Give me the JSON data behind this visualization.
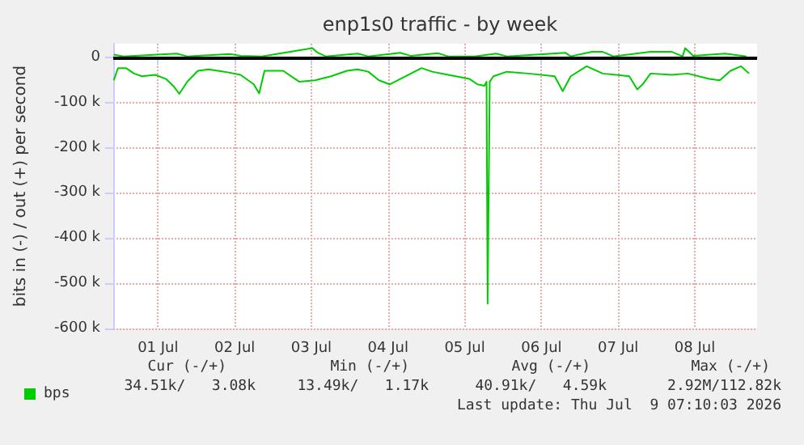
{
  "chart_data": {
    "type": "line",
    "title": "enp1s0 traffic - by week",
    "ylabel": "bits in (-) / out (+) per second",
    "xlim": [
      "2026-06-30T10:00",
      "2026-07-08T19:30"
    ],
    "xticks": [
      {
        "value": "2026-07-01",
        "label": "01 Jul"
      },
      {
        "value": "2026-07-02",
        "label": "02 Jul"
      },
      {
        "value": "2026-07-03",
        "label": "03 Jul"
      },
      {
        "value": "2026-07-04",
        "label": "04 Jul"
      },
      {
        "value": "2026-07-05",
        "label": "05 Jul"
      },
      {
        "value": "2026-07-06",
        "label": "06 Jul"
      },
      {
        "value": "2026-07-07",
        "label": "07 Jul"
      },
      {
        "value": "2026-07-08",
        "label": "08 Jul"
      }
    ],
    "ylim": [
      -600,
      30
    ],
    "yticks": [
      {
        "value": -600,
        "label": "-600 k"
      },
      {
        "value": -500,
        "label": "-500 k"
      },
      {
        "value": -400,
        "label": "-400 k"
      },
      {
        "value": -300,
        "label": "-300 k"
      },
      {
        "value": -200,
        "label": "-200 k"
      },
      {
        "value": -100,
        "label": "-100 k"
      },
      0
    ],
    "grid": true,
    "legend": "bottom left",
    "marker": "none",
    "line_style": "solid",
    "ref_lines": [
      {
        "axis": "y",
        "value": 0,
        "color": "#000000"
      }
    ],
    "series": [
      {
        "name": "bps",
        "color": "#00cc00",
        "x": [
          "2026-06-30T10:10",
          "2026-06-30T11:30",
          "2026-06-30T14:00",
          "2026-06-30T16:30",
          "2026-06-30T19:00",
          "2026-06-30T23:10",
          "2026-07-01T02:30",
          "2026-07-01T05:00",
          "2026-07-01T06:40",
          "2026-07-01T09:10",
          "2026-07-01T12:30",
          "2026-07-01T15:50",
          "2026-07-01T20:50",
          "2026-07-02T01:50",
          "2026-07-02T06:00",
          "2026-07-02T07:40",
          "2026-07-02T09:20",
          "2026-07-02T15:10",
          "2026-07-02T20:10",
          "2026-07-03T01:10",
          "2026-07-03T06:10",
          "2026-07-03T11:10",
          "2026-07-03T14:30",
          "2026-07-03T17:50",
          "2026-07-03T21:10",
          "2026-07-04T00:30",
          "2026-07-04T03:50",
          "2026-07-04T10:30",
          "2026-07-04T13:50",
          "2026-07-04T18:50",
          "2026-07-05T01:30",
          "2026-07-05T04:00",
          "2026-07-05T06:10",
          "2026-07-05T06:50",
          "2026-07-05T07:10",
          "2026-07-05T07:50",
          "2026-07-05T09:00",
          "2026-07-05T13:10",
          "2026-07-05T19:50",
          "2026-07-06T04:10",
          "2026-07-06T06:40",
          "2026-07-06T09:10",
          "2026-07-06T14:10",
          "2026-07-06T19:10",
          "2026-07-07T03:30",
          "2026-07-07T06:00",
          "2026-07-07T07:40",
          "2026-07-07T10:10",
          "2026-07-07T16:50",
          "2026-07-07T21:50",
          "2026-07-08T04:30",
          "2026-07-08T07:50",
          "2026-07-08T11:10",
          "2026-07-08T14:30",
          "2026-07-08T17:00"
        ],
        "values": [
          -51,
          -24,
          -24,
          -36,
          -42,
          -39,
          -48,
          -65,
          -81,
          -54,
          -30,
          -27,
          -32,
          -39,
          -60,
          -80,
          -30,
          -30,
          -54,
          -51,
          -42,
          -30,
          -27,
          -32,
          -51,
          -60,
          -48,
          -24,
          -32,
          -39,
          -48,
          -60,
          -63,
          -54,
          -545,
          -54,
          -42,
          -32,
          -36,
          -42,
          -75,
          -42,
          -20,
          -36,
          -42,
          -71,
          -60,
          -36,
          -39,
          -36,
          -48,
          -51,
          -30,
          -20,
          -36
        ]
      },
      {
        "color": "#00cc00",
        "x": [
          "2026-06-30T10:10",
          "2026-06-30T13:10",
          "2026-07-01T05:50",
          "2026-07-01T09:10",
          "2026-07-01T22:30",
          "2026-07-02T01:50",
          "2026-07-02T08:30",
          "2026-07-03T00:20",
          "2026-07-03T02:00",
          "2026-07-03T04:30",
          "2026-07-03T14:30",
          "2026-07-03T17:50",
          "2026-07-04T03:50",
          "2026-07-04T07:10",
          "2026-07-04T15:30",
          "2026-07-04T18:50",
          "2026-07-05T03:10",
          "2026-07-05T09:50",
          "2026-07-05T13:10",
          "2026-07-06T07:30",
          "2026-07-06T09:10",
          "2026-07-06T15:50",
          "2026-07-06T19:10",
          "2026-07-06T22:30",
          "2026-07-07T10:10",
          "2026-07-07T16:50",
          "2026-07-07T20:10",
          "2026-07-07T21:00",
          "2026-07-07T23:30",
          "2026-07-08T09:30",
          "2026-07-08T16:10"
        ],
        "values": [
          6,
          2,
          8,
          2,
          7,
          3,
          2,
          20,
          10,
          2,
          8,
          2,
          10,
          3,
          9,
          2,
          2,
          8,
          2,
          10,
          2,
          12,
          12,
          2,
          12,
          12,
          2,
          20,
          3,
          8,
          2
        ]
      }
    ],
    "annotations": [
      "Cur (-/+)",
      "Min (-/+)",
      "Avg (-/+)",
      "Max (-/+)",
      "34.51k/   3.08k",
      "13.49k/   1.17k",
      "40.91k/   4.59k",
      "2.92M/112.82k",
      "Last update: Thu Jul  9 07:10:03 2026"
    ]
  }
}
